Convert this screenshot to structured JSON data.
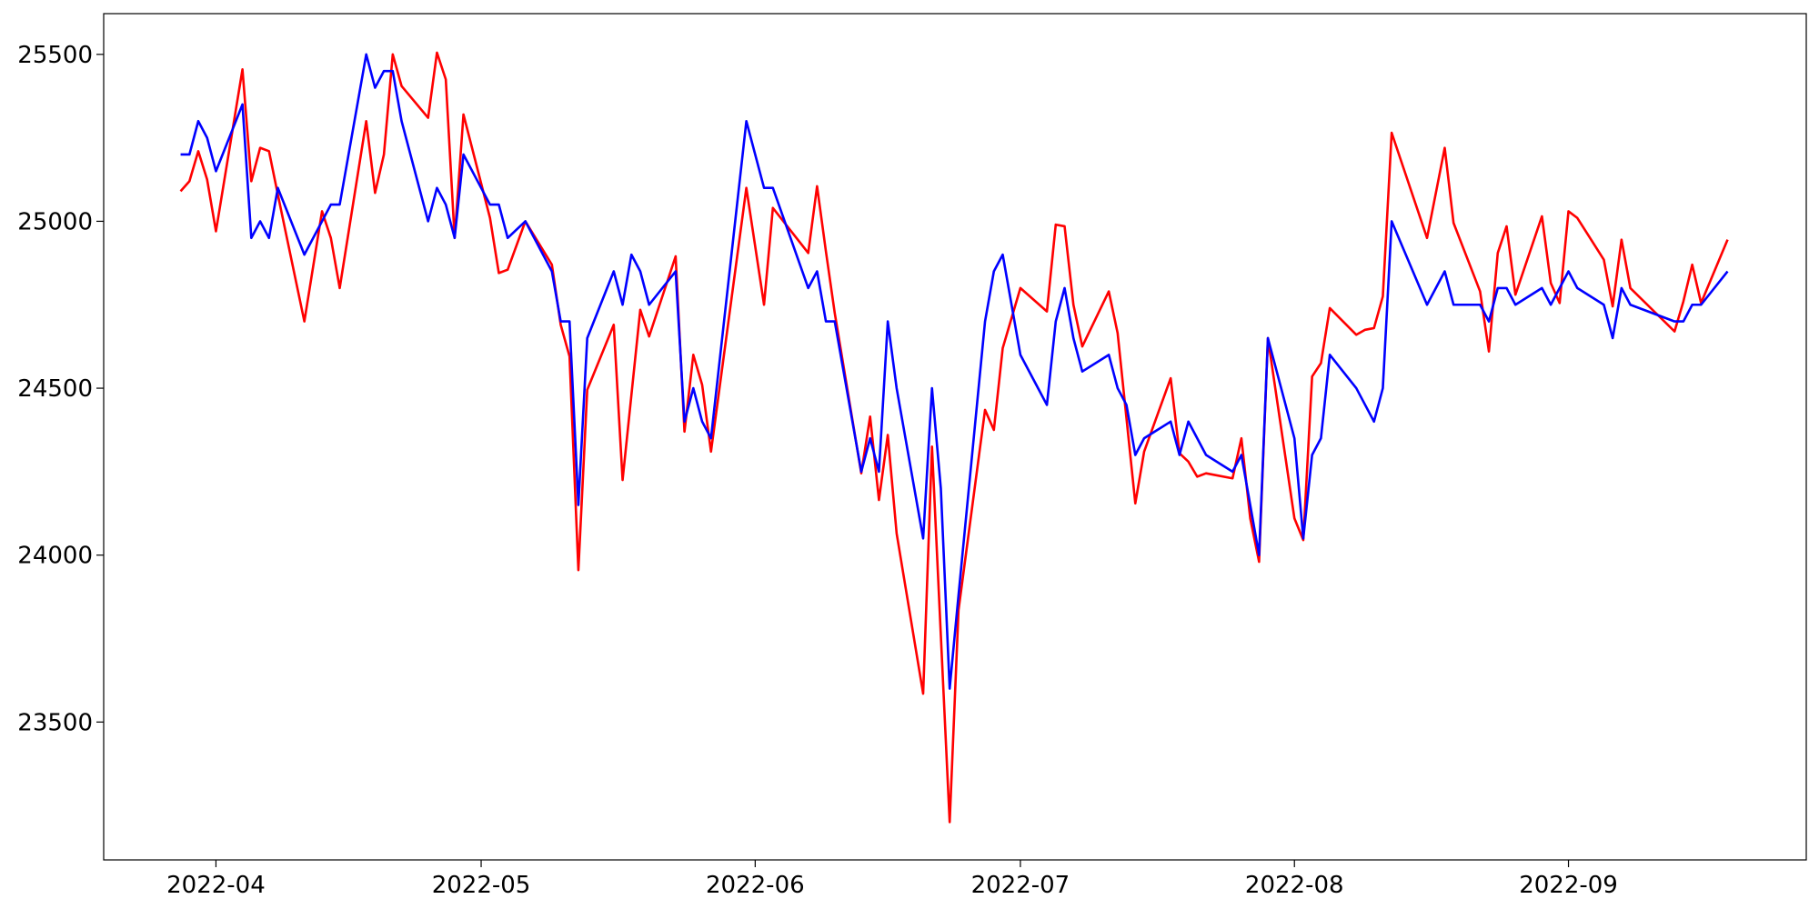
{
  "chart_data": {
    "type": "line",
    "x": [
      87,
      88,
      89,
      90,
      91,
      94,
      95,
      96,
      97,
      98,
      101,
      103,
      104,
      105,
      108,
      109,
      110,
      111,
      112,
      115,
      116,
      117,
      118,
      119,
      122,
      123,
      124,
      126,
      129,
      130,
      131,
      132,
      133,
      136,
      137,
      138,
      139,
      140,
      143,
      144,
      145,
      146,
      147,
      151,
      153,
      154,
      158,
      159,
      160,
      161,
      164,
      165,
      166,
      167,
      168,
      171,
      172,
      173,
      174,
      175,
      178,
      179,
      180,
      182,
      185,
      186,
      187,
      188,
      189,
      192,
      193,
      194,
      195,
      196,
      199,
      200,
      201,
      202,
      203,
      206,
      207,
      208,
      209,
      210,
      213,
      214,
      215,
      216,
      217,
      220,
      221,
      222,
      223,
      224,
      228,
      230,
      231,
      234,
      235,
      236,
      237,
      238,
      241,
      242,
      243,
      244,
      245,
      248,
      249,
      250,
      251,
      256,
      257,
      258,
      259,
      262
    ],
    "series": [
      {
        "color": "#ff0000",
        "values": [
          25090,
          25120,
          25210,
          25125,
          24970,
          25455,
          25120,
          25220,
          25210,
          25080,
          24700,
          25030,
          24950,
          24800,
          25300,
          25085,
          25200,
          25500,
          25405,
          25310,
          25505,
          25425,
          24950,
          25320,
          25010,
          24845,
          24855,
          25000,
          24870,
          24690,
          24595,
          23955,
          24495,
          24690,
          24225,
          24480,
          24735,
          24655,
          24895,
          24370,
          24600,
          24510,
          24310,
          25100,
          24750,
          25040,
          24905,
          25105,
          24910,
          24725,
          24245,
          24415,
          24165,
          24360,
          24065,
          23585,
          24325,
          23760,
          23200,
          23835,
          24435,
          24375,
          24620,
          24800,
          24730,
          24990,
          24985,
          24750,
          24625,
          24790,
          24665,
          24410,
          24155,
          24310,
          24530,
          24305,
          24280,
          24235,
          24245,
          24230,
          24350,
          24110,
          23980,
          24650,
          24110,
          24045,
          24535,
          24575,
          24740,
          24660,
          24675,
          24680,
          24775,
          25265,
          24950,
          25220,
          24995,
          24790,
          24610,
          24905,
          24985,
          24780,
          25015,
          24815,
          24755,
          25030,
          25010,
          24885,
          24745,
          24945,
          24800,
          24670,
          24760,
          24870,
          24755,
          24945
        ]
      },
      {
        "color": "#0000ff",
        "values": [
          25200,
          25200,
          25300,
          25250,
          25150,
          25350,
          24950,
          25000,
          24950,
          25100,
          24900,
          25000,
          25050,
          25050,
          25500,
          25400,
          25450,
          25450,
          25300,
          25000,
          25100,
          25050,
          24950,
          25200,
          25050,
          25050,
          24950,
          25000,
          24850,
          24700,
          24700,
          24150,
          24650,
          24850,
          24750,
          24900,
          24850,
          24750,
          24850,
          24400,
          24500,
          24400,
          24350,
          25300,
          25100,
          25100,
          24800,
          24850,
          24700,
          24700,
          24250,
          24350,
          24250,
          24700,
          24500,
          24050,
          24500,
          24200,
          23600,
          23880,
          24700,
          24850,
          24900,
          24600,
          24450,
          24700,
          24800,
          24650,
          24550,
          24600,
          24500,
          24450,
          24300,
          24350,
          24400,
          24300,
          24400,
          24350,
          24300,
          24250,
          24300,
          24150,
          24000,
          24650,
          24350,
          24050,
          24300,
          24350,
          24600,
          24500,
          24450,
          24400,
          24500,
          25000,
          24750,
          24850,
          24750,
          24750,
          24700,
          24800,
          24800,
          24750,
          24800,
          24750,
          24800,
          24850,
          24800,
          24750,
          24650,
          24800,
          24750,
          24700,
          24700,
          24750,
          24750,
          24850
        ]
      }
    ],
    "xlim": [
      78.3,
      270.9
    ],
    "xticks": [
      {
        "value": 91,
        "label": "2022-04"
      },
      {
        "value": 121,
        "label": "2022-05"
      },
      {
        "value": 152,
        "label": "2022-06"
      },
      {
        "value": 182,
        "label": "2022-07"
      },
      {
        "value": 213,
        "label": "2022-08"
      },
      {
        "value": 244,
        "label": "2022-09"
      }
    ],
    "ylim": [
      23087,
      25622
    ],
    "yticks": [
      23500,
      24000,
      24500,
      25000,
      25500
    ],
    "grid": false
  }
}
